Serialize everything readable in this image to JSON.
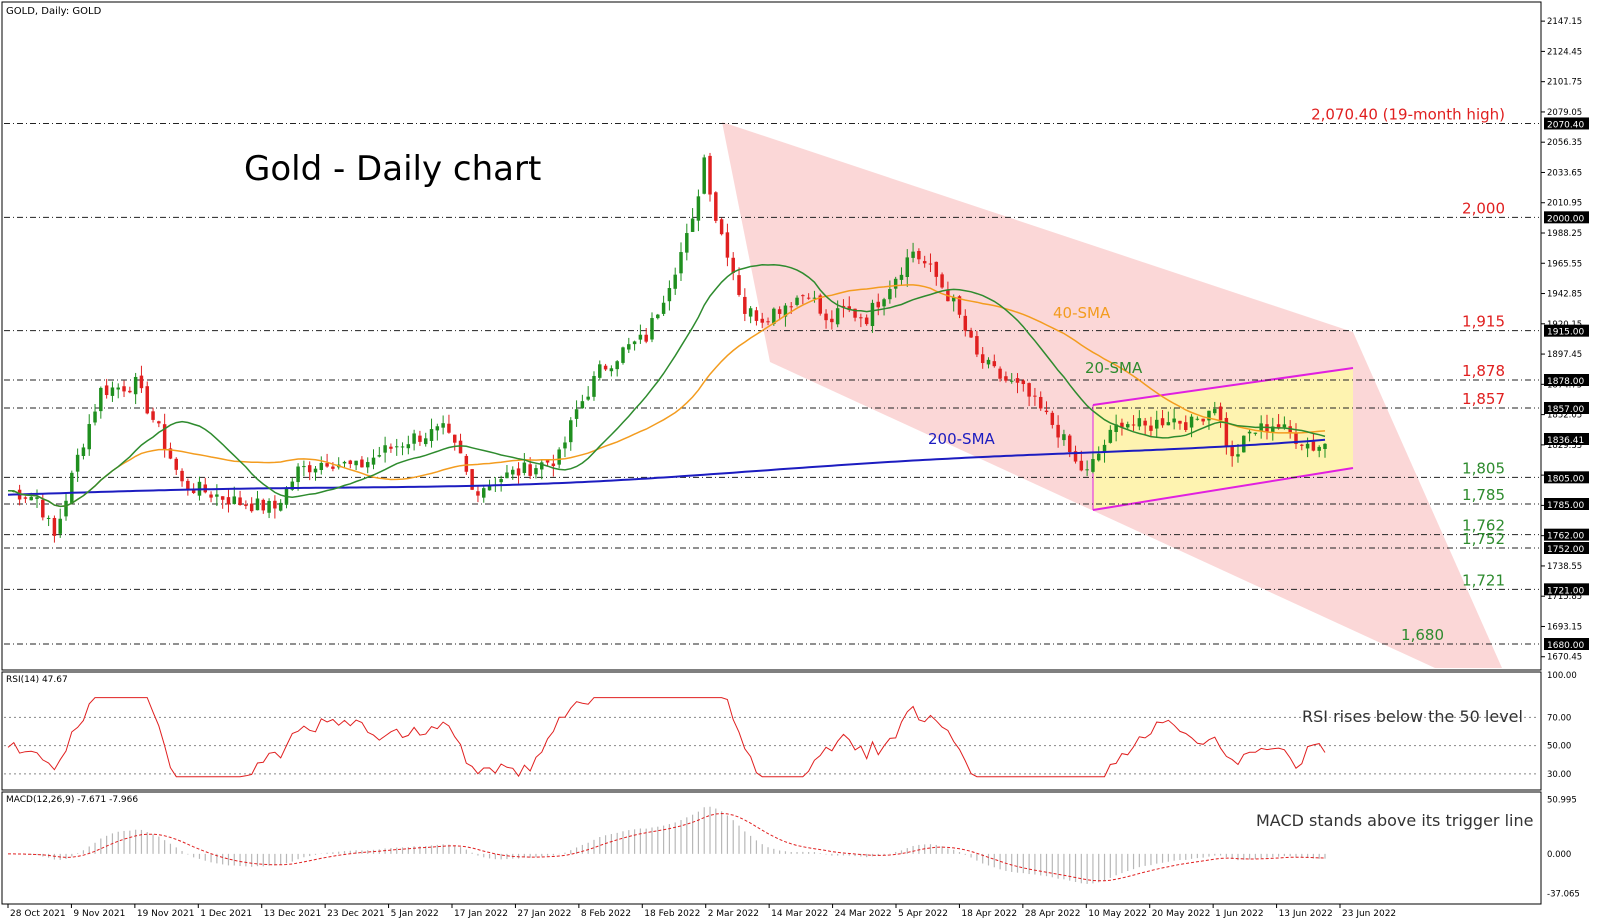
{
  "chart_data": [
    {
      "type": "candlestick",
      "symbol_label": "GOLD, Daily:  GOLD",
      "title": "Gold - Daily chart",
      "y_range": [
        1662,
        2160
      ],
      "y_ticks": [
        "2147.15",
        "2124.45",
        "2101.75",
        "2079.05",
        "2056.35",
        "2033.65",
        "2010.95",
        "1988.25",
        "1965.55",
        "1942.85",
        "1920.15",
        "1897.45",
        "1874.75",
        "1852.05",
        "1829.35",
        "1806.65",
        "1783.95",
        "1761.25",
        "1738.55",
        "1715.85",
        "1693.15",
        "1670.45"
      ],
      "x_labels": [
        "28 Oct 2021",
        "9 Nov 2021",
        "19 Nov 2021",
        "1 Dec 2021",
        "13 Dec 2021",
        "23 Dec 2021",
        "5 Jan 2022",
        "17 Jan 2022",
        "27 Jan 2022",
        "8 Feb 2022",
        "18 Feb 2022",
        "2 Mar 2022",
        "14 Mar 2022",
        "24 Mar 2022",
        "5 Apr 2022",
        "18 Apr 2022",
        "28 Apr 2022",
        "10 May 2022",
        "20 May 2022",
        "1 Jun 2022",
        "13 Jun 2022",
        "23 Jun 2022"
      ],
      "anchor_points": [
        [
          0,
          1795
        ],
        [
          5,
          1790
        ],
        [
          8,
          1760
        ],
        [
          12,
          1820
        ],
        [
          16,
          1870
        ],
        [
          22,
          1875
        ],
        [
          26,
          1840
        ],
        [
          30,
          1800
        ],
        [
          40,
          1786
        ],
        [
          46,
          1782
        ],
        [
          50,
          1810
        ],
        [
          55,
          1818
        ],
        [
          60,
          1812
        ],
        [
          65,
          1825
        ],
        [
          70,
          1835
        ],
        [
          75,
          1840
        ],
        [
          78,
          1820
        ],
        [
          80,
          1795
        ],
        [
          85,
          1805
        ],
        [
          90,
          1812
        ],
        [
          95,
          1820
        ],
        [
          98,
          1855
        ],
        [
          102,
          1885
        ],
        [
          106,
          1900
        ],
        [
          110,
          1910
        ],
        [
          114,
          1952
        ],
        [
          118,
          1995
        ],
        [
          120,
          2045
        ],
        [
          122,
          2000
        ],
        [
          124,
          1975
        ],
        [
          127,
          1930
        ],
        [
          130,
          1925
        ],
        [
          134,
          1935
        ],
        [
          138,
          1945
        ],
        [
          141,
          1920
        ],
        [
          144,
          1930
        ],
        [
          148,
          1925
        ],
        [
          152,
          1950
        ],
        [
          156,
          1975
        ],
        [
          160,
          1955
        ],
        [
          163,
          1935
        ],
        [
          167,
          1895
        ],
        [
          171,
          1880
        ],
        [
          175,
          1870
        ],
        [
          178,
          1855
        ],
        [
          181,
          1840
        ],
        [
          184,
          1815
        ],
        [
          186,
          1808
        ],
        [
          189,
          1830
        ],
        [
          192,
          1848
        ],
        [
          196,
          1842
        ],
        [
          200,
          1850
        ],
        [
          204,
          1845
        ],
        [
          208,
          1860
        ],
        [
          211,
          1818
        ],
        [
          214,
          1838
        ],
        [
          218,
          1845
        ],
        [
          222,
          1835
        ],
        [
          225,
          1828
        ],
        [
          227,
          1830
        ]
      ],
      "candle_spacing_days": 1,
      "key_levels": [
        {
          "value": 2070.4,
          "label": "2,070.40 (19-month high)",
          "tag": "2070.40",
          "style": "red"
        },
        {
          "value": 2000,
          "label": "2,000",
          "tag": "2000.00",
          "style": "red"
        },
        {
          "value": 1915,
          "label": "1,915",
          "tag": "1915.00",
          "style": "red"
        },
        {
          "value": 1878,
          "label": "1,878",
          "tag": "1878.00",
          "style": "red"
        },
        {
          "value": 1857,
          "label": "1,857",
          "tag": "1857.00",
          "style": "red"
        },
        {
          "value": 1805,
          "label": "1,805",
          "tag": "1805.00",
          "style": "green"
        },
        {
          "value": 1785,
          "label": "1,785",
          "tag": "1785.00",
          "style": "green"
        },
        {
          "value": 1762,
          "label": "1,762",
          "tag": "1762.00",
          "style": "green"
        },
        {
          "value": 1752,
          "label": "1,752",
          "tag": "1752.00",
          "style": "green"
        },
        {
          "value": 1721,
          "label": "1,721",
          "tag": "1721.00",
          "style": "green"
        },
        {
          "value": 1680,
          "label": "1,680",
          "tag": "1680.00",
          "style": "green"
        }
      ],
      "current_price_tag": "1836.41",
      "sma_labels": {
        "sma40": "40-SMA",
        "sma20": "20-SMA",
        "sma200": "200-SMA"
      },
      "colors": {
        "bull": "#1f8f1f",
        "bear": "#e02020",
        "sma20": "#2e8b2e",
        "sma40": "#f39c1f",
        "sma200": "#1c1cc0",
        "channel": "#f9c9c9",
        "range_fill": "#ffffa0",
        "range_border": "#e020e0",
        "level_red": "#e02020",
        "level_green": "#2e8b2e"
      }
    },
    {
      "type": "line",
      "label": "RSI(14) 47.67",
      "annotation": "RSI rises below the 50 level",
      "y_range": [
        20,
        100
      ],
      "y_ticks": [
        "100.00",
        "70.00",
        "50.00",
        "30.00"
      ],
      "levels": [
        70,
        50,
        30
      ],
      "color": "#e02020"
    },
    {
      "type": "bar",
      "label": "MACD(12,26,9) -7.671 -7.966",
      "annotation": "MACD stands above its trigger line",
      "y_range": [
        -45,
        55
      ],
      "y_ticks": [
        "50.995",
        "0.000",
        "-37.065"
      ],
      "colors": {
        "histogram": "#b8b8b8",
        "signal": "#e02020"
      }
    }
  ]
}
